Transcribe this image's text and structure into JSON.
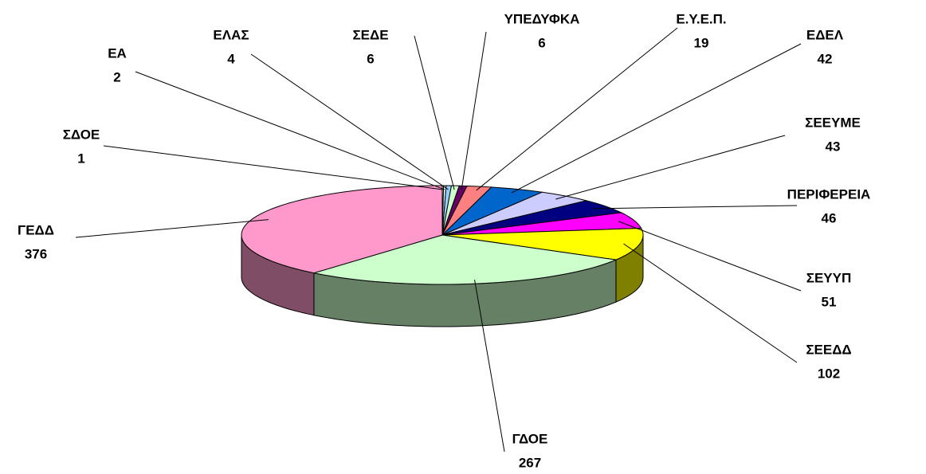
{
  "chart_data": {
    "type": "pie3d",
    "categories": [
      "ΣΔΟΕ",
      "ΕΑ",
      "ΕΛΑΣ",
      "ΣΕΔΕ",
      "ΥΠΕΔΥΦΚΑ",
      "Ε.Υ.Ε.Π.",
      "ΕΔΕΛ",
      "ΣΕΕΥΜΕ",
      "ΠΕΡΙΦΕΡΕΙΑ",
      "ΣΕΥΥΠ",
      "ΣΕΕΔΔ",
      "ΓΔΟΕ",
      "ΓΕΔΔ"
    ],
    "values": [
      1,
      2,
      4,
      6,
      6,
      19,
      42,
      43,
      46,
      51,
      102,
      267,
      376
    ],
    "colors": [
      "#ffffcc",
      "#ccffff",
      "#99ccff",
      "#ccffcc",
      "#660066",
      "#ff8080",
      "#0066cc",
      "#ccccff",
      "#000080",
      "#ff00ff",
      "#ffff00",
      "#ccffcc",
      "#ff99cc"
    ]
  }
}
